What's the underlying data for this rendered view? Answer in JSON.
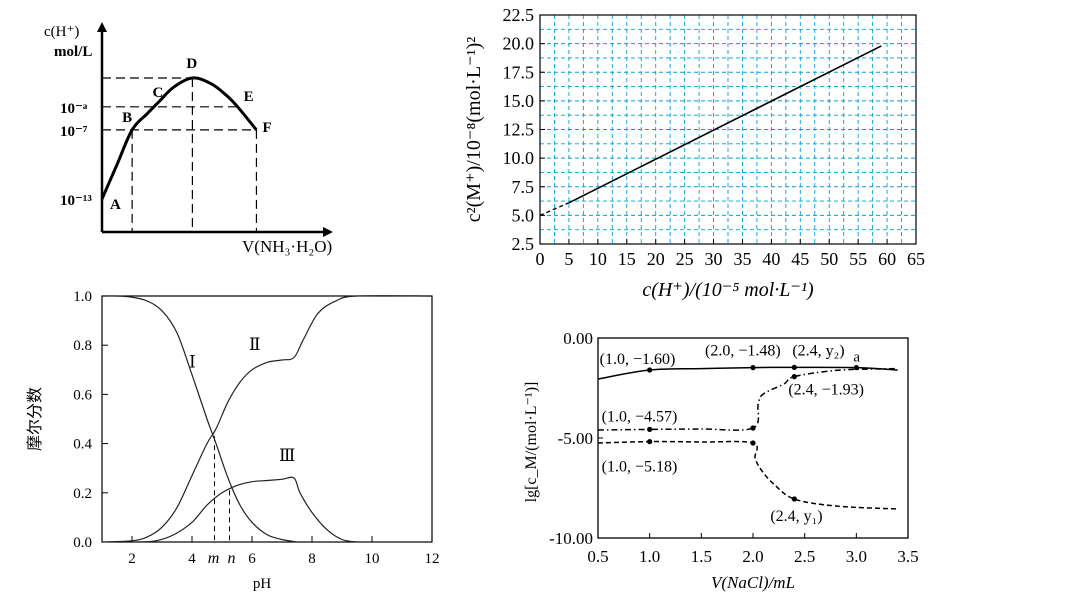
{
  "chart_data": [
    {
      "type": "line",
      "title": "",
      "ylabel_lines": [
        "c(H⁺)",
        "mol/L"
      ],
      "xlabel": "V(NH₃·H₂O)",
      "y_tick_labels": [
        "10⁻ᵃ",
        "10⁻⁷",
        "10⁻¹³"
      ],
      "points": [
        {
          "name": "A",
          "x": 0.0,
          "y": -13.0
        },
        {
          "name": "B",
          "x": 0.16,
          "y": -7.0
        },
        {
          "name": "C",
          "x": 0.3,
          "y": -5.0
        },
        {
          "name": "D",
          "x": 0.48,
          "y": -2.5
        },
        {
          "name": "E",
          "x": 0.72,
          "y": -5.0
        },
        {
          "name": "F",
          "x": 0.82,
          "y": -7.0
        }
      ],
      "curve": [
        [
          0.0,
          -13.0
        ],
        [
          0.08,
          -10.0
        ],
        [
          0.16,
          -7.0
        ],
        [
          0.24,
          -5.6
        ],
        [
          0.3,
          -4.6
        ],
        [
          0.38,
          -3.3
        ],
        [
          0.48,
          -2.5
        ],
        [
          0.58,
          -3.0
        ],
        [
          0.66,
          -4.0
        ],
        [
          0.72,
          -5.0
        ],
        [
          0.82,
          -7.0
        ]
      ],
      "levels": {
        "D": -2.5,
        "a": -5.0,
        "seven": -7.0,
        "thirteen": -13.0
      }
    },
    {
      "type": "line",
      "title": "",
      "xlabel": "c(H⁺)/(10⁻⁵ mol·L⁻¹)",
      "ylabel": "c²(M⁺)/10⁻⁸(mol·L⁻¹)²",
      "xlim": [
        0,
        65
      ],
      "ylim": [
        2.5,
        22.5
      ],
      "x_ticks": [
        0,
        5,
        10,
        15,
        20,
        25,
        30,
        35,
        40,
        45,
        50,
        55,
        60,
        65
      ],
      "y_ticks": [
        2.5,
        5.0,
        7.5,
        10.0,
        12.5,
        15.0,
        17.5,
        20.0,
        22.5
      ],
      "x_tick_labels": [
        "0",
        "5",
        "10",
        "15",
        "20",
        "25",
        "30",
        "35",
        "40",
        "45",
        "50",
        "55",
        "60",
        "65"
      ],
      "y_tick_labels": [
        "2.5",
        "5.0",
        "7.5",
        "10.0",
        "12.5",
        "15.0",
        "17.5",
        "20.0",
        "22.5"
      ],
      "grid": true,
      "grid_color": "#00a0d8",
      "solid_line": [
        [
          5,
          6.1
        ],
        [
          59,
          19.8
        ]
      ],
      "dashed_line": [
        [
          0,
          5.0
        ],
        [
          5,
          6.1
        ]
      ]
    },
    {
      "type": "line",
      "title": "",
      "xlabel": "pH",
      "ylabel": "摩尔分数",
      "xlim": [
        1,
        12
      ],
      "ylim": [
        0,
        1.0
      ],
      "x_ticks": [
        2,
        4,
        6,
        8,
        10,
        12
      ],
      "y_ticks": [
        0.0,
        0.2,
        0.4,
        0.6,
        0.8,
        1.0
      ],
      "x_tick_labels": [
        "2",
        "4",
        "6",
        "8",
        "10",
        "12"
      ],
      "y_tick_labels": [
        "0.0",
        "0.2",
        "0.4",
        "0.6",
        "0.8",
        "1.0"
      ],
      "series": [
        {
          "name": "Ⅰ",
          "values": [
            [
              1.0,
              1.0
            ],
            [
              1.5,
              1.0
            ],
            [
              2.0,
              0.995
            ],
            [
              2.5,
              0.98
            ],
            [
              3.0,
              0.94
            ],
            [
              3.5,
              0.85
            ],
            [
              4.0,
              0.68
            ],
            [
              4.5,
              0.5
            ],
            [
              4.8,
              0.4
            ],
            [
              5.2,
              0.26
            ],
            [
              5.6,
              0.15
            ],
            [
              6.0,
              0.08
            ],
            [
              6.5,
              0.03
            ],
            [
              7.0,
              0.01
            ],
            [
              7.5,
              0.0
            ]
          ]
        },
        {
          "name": "Ⅱ",
          "values": [
            [
              1.0,
              0.0
            ],
            [
              2.0,
              0.005
            ],
            [
              2.5,
              0.02
            ],
            [
              3.0,
              0.06
            ],
            [
              3.5,
              0.14
            ],
            [
              4.0,
              0.27
            ],
            [
              4.5,
              0.4
            ],
            [
              4.8,
              0.46
            ],
            [
              5.2,
              0.57
            ],
            [
              5.6,
              0.65
            ],
            [
              6.0,
              0.7
            ],
            [
              6.5,
              0.73
            ],
            [
              7.0,
              0.74
            ],
            [
              7.4,
              0.75
            ],
            [
              7.7,
              0.82
            ],
            [
              8.2,
              0.93
            ],
            [
              8.8,
              0.98
            ],
            [
              9.5,
              1.0
            ],
            [
              12.0,
              1.0
            ]
          ]
        },
        {
          "name": "Ⅲ",
          "values": [
            [
              2.2,
              0.0
            ],
            [
              2.8,
              0.005
            ],
            [
              3.4,
              0.03
            ],
            [
              4.0,
              0.08
            ],
            [
              4.5,
              0.15
            ],
            [
              5.0,
              0.2
            ],
            [
              5.5,
              0.23
            ],
            [
              6.0,
              0.245
            ],
            [
              6.5,
              0.25
            ],
            [
              7.0,
              0.255
            ],
            [
              7.4,
              0.26
            ],
            [
              7.6,
              0.2
            ],
            [
              8.0,
              0.12
            ],
            [
              8.5,
              0.05
            ],
            [
              9.0,
              0.01
            ],
            [
              9.5,
              0.0
            ]
          ]
        }
      ],
      "marks": {
        "m": 4.75,
        "n": 5.25,
        "m_label": "m",
        "n_label": "n"
      }
    },
    {
      "type": "line",
      "title": "",
      "xlabel": "V(NaCl)/mL",
      "ylabel": "lg[c_M/(mol·L⁻¹)]",
      "xlim": [
        0.5,
        3.5
      ],
      "ylim": [
        -10.0,
        0.0
      ],
      "x_ticks": [
        0.5,
        1.0,
        1.5,
        2.0,
        2.5,
        3.0,
        3.5
      ],
      "y_ticks": [
        0.0,
        -5.0,
        -10.0
      ],
      "x_tick_labels": [
        "0.5",
        "1.0",
        "1.5",
        "2.0",
        "2.5",
        "3.0",
        "3.5"
      ],
      "y_tick_labels": [
        "0.00",
        "-5.00",
        "-10.00"
      ],
      "series": [
        {
          "name": "solid",
          "style": "solid",
          "values": [
            [
              0.5,
              -2.05
            ],
            [
              1.0,
              -1.6
            ],
            [
              1.5,
              -1.53
            ],
            [
              2.0,
              -1.48
            ],
            [
              2.4,
              -1.47
            ],
            [
              3.0,
              -1.48
            ],
            [
              3.4,
              -1.6
            ]
          ]
        },
        {
          "name": "dashdot",
          "style": "dashdot",
          "values": [
            [
              0.5,
              -4.6
            ],
            [
              1.0,
              -4.57
            ],
            [
              1.5,
              -4.55
            ],
            [
              2.0,
              -4.5
            ],
            [
              2.05,
              -3.3
            ],
            [
              2.1,
              -2.8
            ],
            [
              2.3,
              -2.3
            ],
            [
              2.4,
              -1.93
            ],
            [
              2.8,
              -1.62
            ],
            [
              3.2,
              -1.55
            ],
            [
              3.4,
              -1.53
            ]
          ]
        },
        {
          "name": "dash",
          "style": "dash",
          "values": [
            [
              0.5,
              -5.25
            ],
            [
              1.0,
              -5.18
            ],
            [
              1.5,
              -5.2
            ],
            [
              2.0,
              -5.25
            ],
            [
              2.02,
              -6.0
            ],
            [
              2.08,
              -6.6
            ],
            [
              2.2,
              -7.3
            ],
            [
              2.4,
              -8.05
            ],
            [
              2.8,
              -8.4
            ],
            [
              3.4,
              -8.55
            ]
          ]
        }
      ],
      "points": [
        {
          "x": 1.0,
          "y": -1.6,
          "label": "(1.0, −1.60)"
        },
        {
          "x": 2.0,
          "y": -1.48,
          "label": "(2.0, −1.48)"
        },
        {
          "x": 2.4,
          "y": -1.47,
          "label": "(2.4, y₂)"
        },
        {
          "x": 2.4,
          "y": -1.93,
          "label": "(2.4, −1.93)"
        },
        {
          "x": 1.0,
          "y": -4.57,
          "label": "(1.0, −4.57)"
        },
        {
          "x": 1.0,
          "y": -5.18,
          "label": "(1.0, −5.18)"
        },
        {
          "x": 2.0,
          "y": -4.5,
          "label": ""
        },
        {
          "x": 2.0,
          "y": -5.25,
          "label": ""
        },
        {
          "x": 3.0,
          "y": -1.48,
          "label": ""
        },
        {
          "x": 2.4,
          "y": -8.05,
          "label": "(2.4, y₁)"
        }
      ],
      "point_a_label": "a"
    }
  ]
}
